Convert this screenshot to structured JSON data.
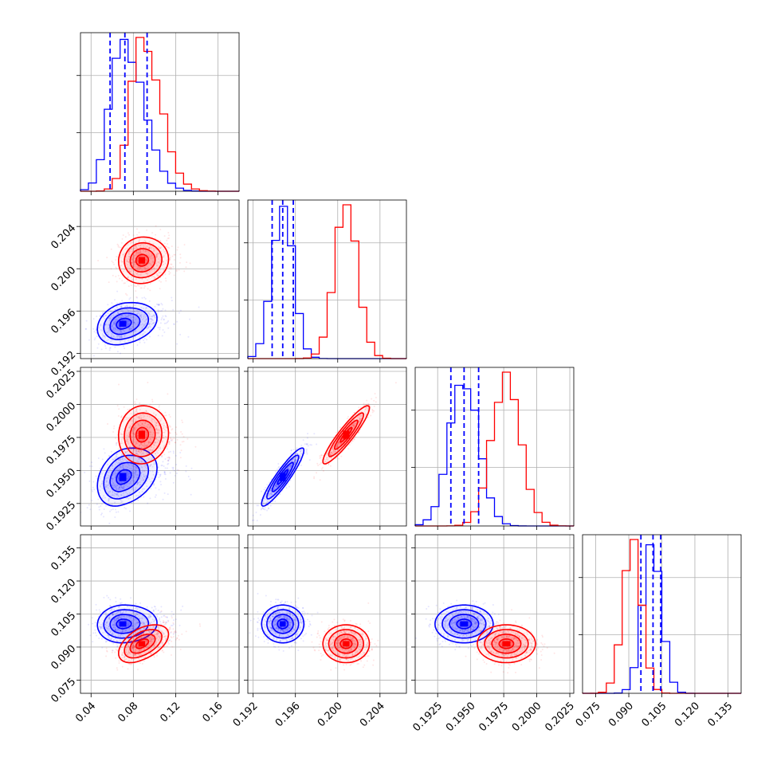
{
  "chart_data": {
    "type": "scatter",
    "title": "",
    "colors": {
      "series_a": "#0000ff",
      "series_b": "#ff0000"
    },
    "grid": true,
    "parameters": [
      {
        "ticks": [
          0.04,
          0.08,
          0.12,
          0.16
        ],
        "tick_labels": [
          "0.04",
          "0.08",
          "0.12",
          "0.16"
        ],
        "range": [
          0.03,
          0.18
        ]
      },
      {
        "ticks": [
          0.192,
          0.196,
          0.2,
          0.204
        ],
        "tick_labels": [
          "0.192",
          "0.196",
          "0.200",
          "0.204"
        ],
        "range": [
          0.1915,
          0.2065
        ]
      },
      {
        "ticks": [
          0.1925,
          0.195,
          0.1975,
          0.2,
          0.2025
        ],
        "tick_labels": [
          "0.1925",
          "0.1950",
          "0.1975",
          "0.2000",
          "0.2025"
        ],
        "range": [
          0.1908,
          0.2028
        ]
      },
      {
        "ticks": [
          0.075,
          0.09,
          0.105,
          0.12,
          0.135
        ],
        "tick_labels": [
          "0.075",
          "0.090",
          "0.105",
          "0.120",
          "0.135"
        ],
        "range": [
          0.069,
          0.141
        ]
      }
    ],
    "series": [
      {
        "color": "#0000ff",
        "means": [
          0.07,
          0.1948,
          0.1945,
          0.1005
        ],
        "stds": [
          0.012,
          0.001,
          0.0011,
          0.0043
        ],
        "quantiles": [
          [
            0.058,
            0.072,
            0.093
          ],
          [
            0.1938,
            0.1948,
            0.1958
          ],
          [
            0.1935,
            0.1945,
            0.1956
          ],
          [
            0.0955,
            0.101,
            0.1045
          ]
        ]
      },
      {
        "color": "#ff0000",
        "means": [
          0.088,
          0.2008,
          0.1977,
          0.0915
        ],
        "stds": [
          0.011,
          0.0011,
          0.0011,
          0.0043
        ]
      }
    ],
    "correlations": {
      "0-1": [
        0.25,
        0.05
      ],
      "0-2": [
        0.3,
        0.05
      ],
      "0-3": [
        0.05,
        0.5
      ],
      "1-2": [
        0.92,
        0.92
      ],
      "1-3": [
        0.0,
        0.0
      ],
      "2-3": [
        0.0,
        0.0
      ]
    }
  }
}
